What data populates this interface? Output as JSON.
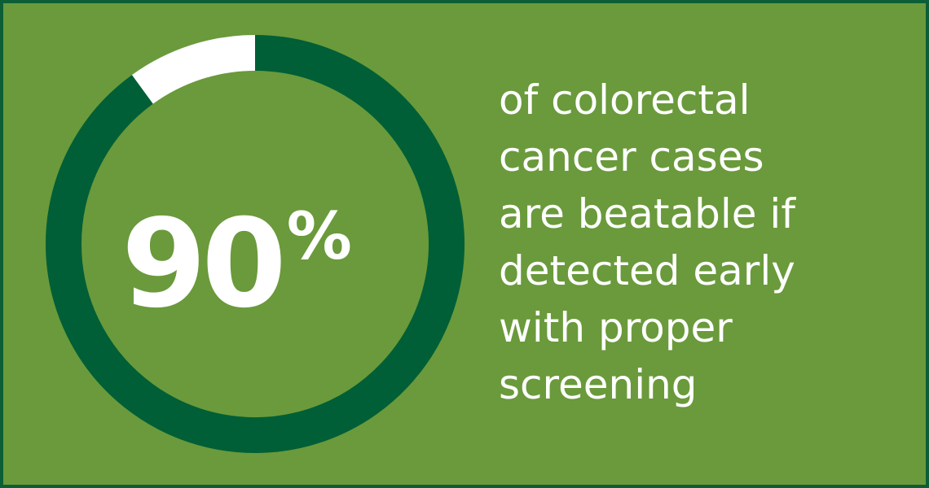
{
  "chart_data": {
    "type": "donut",
    "values": [
      90,
      10
    ],
    "value_labels": [
      "90%",
      null
    ],
    "colors": [
      "#005f36",
      "#ffffff"
    ],
    "caption": [
      "of colorectal",
      "cancer cases",
      "are beatable if",
      "detected early",
      "with proper",
      "screening"
    ]
  }
}
